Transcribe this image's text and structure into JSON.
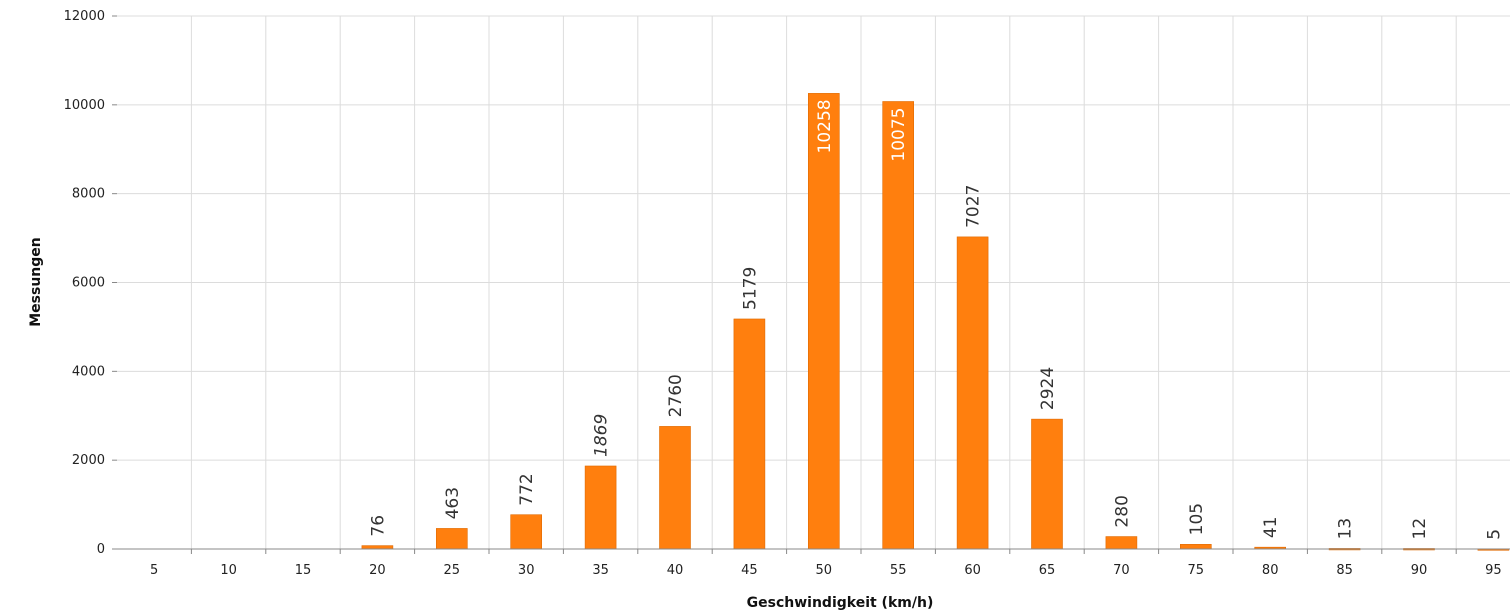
{
  "chart_data": {
    "type": "bar",
    "title": "",
    "xlabel": "Geschwindigkeit (km/h)",
    "ylabel": "Messungen",
    "categories": [
      "5",
      "10",
      "15",
      "20",
      "25",
      "30",
      "35",
      "40",
      "45",
      "50",
      "55",
      "60",
      "65",
      "70",
      "75",
      "80",
      "85",
      "90",
      "95"
    ],
    "values": [
      0,
      0,
      0,
      76,
      463,
      772,
      1869,
      2760,
      5179,
      10258,
      10075,
      7027,
      2924,
      280,
      105,
      41,
      13,
      12,
      5
    ],
    "data_labels": [
      "",
      "",
      "",
      "76",
      "463",
      "772",
      "1869",
      "2760",
      "5179",
      "10258",
      "10075",
      "7027",
      "2924",
      "280",
      "105",
      "41",
      "13",
      "12",
      "5"
    ],
    "ylim": [
      0,
      12000
    ],
    "yticks": [
      "0",
      "2000",
      "4000",
      "6000",
      "8000",
      "10000",
      "12000"
    ],
    "grid": true,
    "legend": "none",
    "colors": {
      "bar": "#ff7f0e",
      "bar_edge": "#e06a00",
      "grid": "#dcdcdc"
    }
  }
}
